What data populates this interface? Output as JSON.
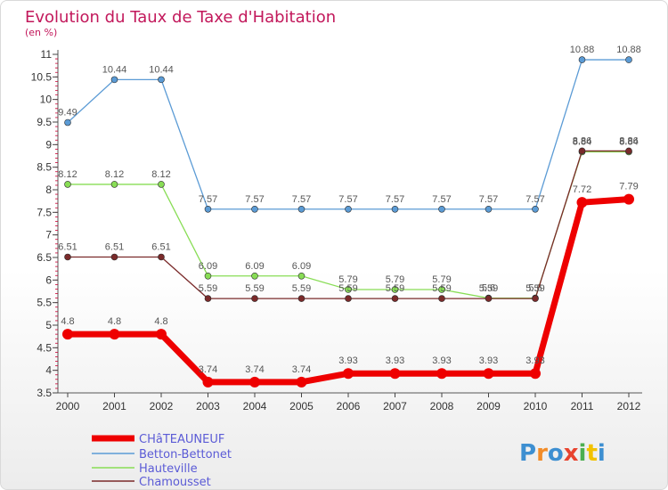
{
  "chart_data": {
    "type": "line",
    "title": "Evolution du Taux de Taxe d'Habitation",
    "subtitle": "(en %)",
    "x": [
      "2000",
      "2001",
      "2002",
      "2003",
      "2004",
      "2005",
      "2006",
      "2007",
      "2008",
      "2009",
      "2010",
      "2011",
      "2012"
    ],
    "y_ticks": [
      "3.5",
      "4",
      "4.5",
      "5",
      "5.5",
      "6",
      "6.5",
      "7",
      "7.5",
      "8",
      "8.5",
      "9",
      "9.5",
      "10",
      "10.5",
      "11"
    ],
    "ylim": [
      3.5,
      11
    ],
    "grid": false,
    "legend_position": "bottom-left",
    "series": [
      {
        "name": "CHâTEAUNEUF",
        "color": "#ee0000",
        "values": [
          4.8,
          4.8,
          4.8,
          3.74,
          3.74,
          3.74,
          3.93,
          3.93,
          3.93,
          3.93,
          3.93,
          7.72,
          7.79
        ],
        "labels": [
          "4.8",
          "4.8",
          "4.8",
          "3.74",
          "3.74",
          "3.74",
          "3.93",
          "3.93",
          "3.93",
          "3.93",
          "3.93",
          "7.72",
          "7.79"
        ]
      },
      {
        "name": "Betton-Bettonet",
        "color": "#5b9bd5",
        "values": [
          9.49,
          10.44,
          10.44,
          7.57,
          7.57,
          7.57,
          7.57,
          7.57,
          7.57,
          7.57,
          7.57,
          10.88,
          10.88
        ],
        "labels": [
          "9.49",
          "10.44",
          "10.44",
          "7.57",
          "7.57",
          "7.57",
          "7.57",
          "7.57",
          "7.57",
          "7.57",
          "7.57",
          "10.88",
          "10.88"
        ]
      },
      {
        "name": "Hauteville",
        "color": "#88dd55",
        "values": [
          8.12,
          8.12,
          8.12,
          6.09,
          6.09,
          6.09,
          5.79,
          5.79,
          5.79,
          5.6,
          5.6,
          8.84,
          8.84
        ],
        "labels": [
          "8.12",
          "8.12",
          "8.12",
          "6.09",
          "6.09",
          "6.09",
          "5.79",
          "5.79",
          "5.79",
          "5.6",
          "5.6",
          "8.84",
          "8.84"
        ]
      },
      {
        "name": "Chamousset",
        "color": "#7a2a2a",
        "values": [
          6.51,
          6.51,
          6.51,
          5.59,
          5.59,
          5.59,
          5.59,
          5.59,
          5.59,
          5.59,
          5.59,
          8.86,
          8.86
        ],
        "labels": [
          "6.51",
          "6.51",
          "6.51",
          "5.59",
          "5.59",
          "5.59",
          "5.59",
          "5.59",
          "5.59",
          "5.59",
          "5.59",
          "8.86",
          "8.86"
        ]
      }
    ]
  },
  "brand": {
    "text": "Proxiti"
  }
}
